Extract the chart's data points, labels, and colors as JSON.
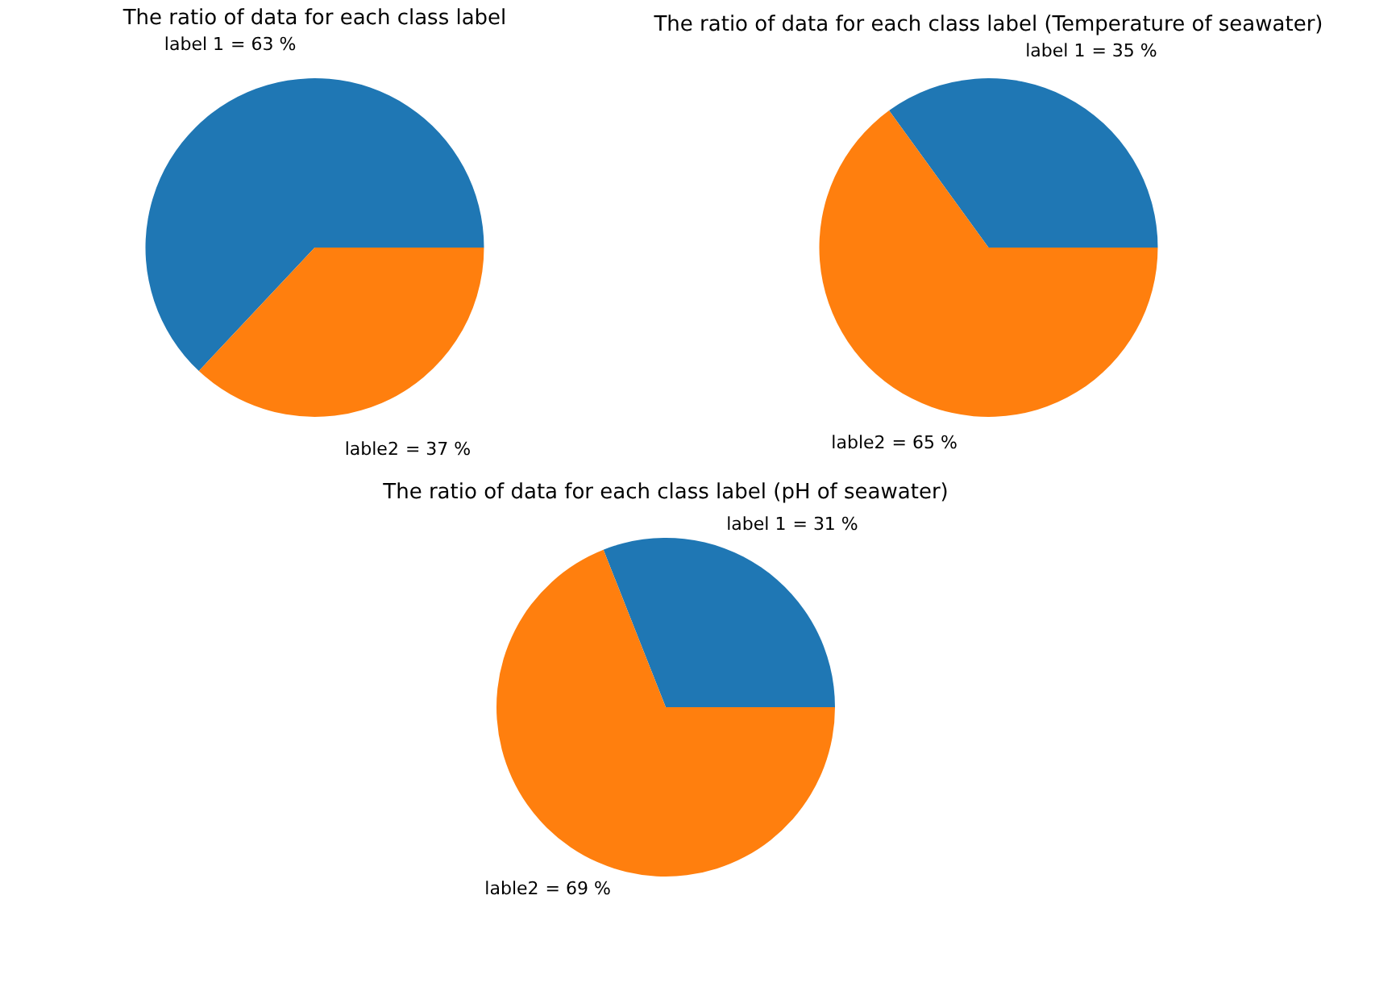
{
  "chart_data": [
    {
      "type": "pie",
      "title": "The ratio of data for each class label",
      "categories": [
        "label 1",
        "lable2"
      ],
      "values": [
        63,
        37
      ],
      "colors": [
        "#1f77b4",
        "#ff7f0e"
      ],
      "value_labels": [
        "= 63 %",
        "= 37 %"
      ]
    },
    {
      "type": "pie",
      "title": "The ratio of data for each class label (Temperature of seawater)",
      "categories": [
        "label 1",
        "lable2"
      ],
      "values": [
        35,
        65
      ],
      "colors": [
        "#1f77b4",
        "#ff7f0e"
      ],
      "value_labels": [
        "= 35 %",
        "= 65 %"
      ]
    },
    {
      "type": "pie",
      "title": "The ratio of data for each class label (pH of seawater)",
      "categories": [
        "label 1",
        "lable2"
      ],
      "values": [
        31,
        69
      ],
      "colors": [
        "#1f77b4",
        "#ff7f0e"
      ],
      "value_labels": [
        "= 31 %",
        "= 69 %"
      ]
    }
  ]
}
